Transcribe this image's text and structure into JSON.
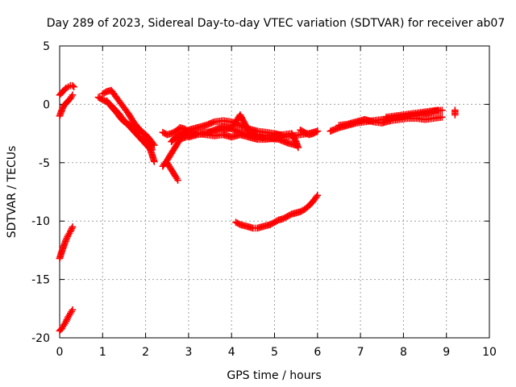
{
  "chart_data": {
    "type": "scatter",
    "title": "Day 289 of 2023, Sidereal Day-to-day VTEC variation (SDTVAR) for receiver ab07",
    "xlabel": "GPS time / hours",
    "ylabel": "SDTVAR / TECUs",
    "xlim": [
      0,
      10
    ],
    "ylim": [
      -20,
      5
    ],
    "xticks": [
      0,
      1,
      2,
      3,
      4,
      5,
      6,
      7,
      8,
      9,
      10
    ],
    "yticks": [
      -20,
      -15,
      -10,
      -5,
      0,
      5
    ],
    "grid": true,
    "marker": "plus",
    "color": "#ff0000",
    "series": [
      {
        "tracks": [
          [
            [
              0.0,
              -1.0
            ],
            [
              0.05,
              -0.5
            ],
            [
              0.1,
              -0.1
            ],
            [
              0.15,
              0.1
            ],
            [
              0.2,
              0.3
            ],
            [
              0.25,
              0.5
            ],
            [
              0.3,
              0.8
            ]
          ],
          [
            [
              0.0,
              0.8
            ],
            [
              0.05,
              1.0
            ],
            [
              0.1,
              1.2
            ],
            [
              0.15,
              1.4
            ],
            [
              0.2,
              1.5
            ],
            [
              0.25,
              1.6
            ],
            [
              0.3,
              1.6
            ],
            [
              0.33,
              1.5
            ]
          ],
          [
            [
              0.0,
              -13.2
            ],
            [
              0.05,
              -12.6
            ],
            [
              0.1,
              -12.1
            ],
            [
              0.15,
              -11.6
            ],
            [
              0.2,
              -11.2
            ],
            [
              0.25,
              -10.9
            ],
            [
              0.3,
              -10.5
            ]
          ],
          [
            [
              0.0,
              -19.4
            ],
            [
              0.05,
              -19.2
            ],
            [
              0.1,
              -18.9
            ],
            [
              0.15,
              -18.6
            ],
            [
              0.2,
              -18.2
            ],
            [
              0.25,
              -17.9
            ],
            [
              0.3,
              -17.6
            ]
          ]
        ]
      },
      {
        "tracks": [
          [
            [
              0.9,
              0.6
            ],
            [
              1.0,
              0.4
            ],
            [
              1.1,
              0.2
            ],
            [
              1.2,
              -0.1
            ],
            [
              1.3,
              -0.5
            ],
            [
              1.4,
              -0.9
            ],
            [
              1.5,
              -1.4
            ],
            [
              1.6,
              -1.8
            ],
            [
              1.7,
              -2.2
            ],
            [
              1.8,
              -2.6
            ],
            [
              1.9,
              -3.0
            ],
            [
              2.0,
              -3.4
            ],
            [
              2.1,
              -3.8
            ],
            [
              2.15,
              -4.3
            ],
            [
              2.2,
              -4.9
            ]
          ],
          [
            [
              1.0,
              0.9
            ],
            [
              1.1,
              1.1
            ],
            [
              1.2,
              1.2
            ],
            [
              1.3,
              0.7
            ],
            [
              1.4,
              0.2
            ],
            [
              1.5,
              -0.3
            ],
            [
              1.6,
              -0.8
            ],
            [
              1.7,
              -1.4
            ],
            [
              1.8,
              -1.9
            ],
            [
              1.9,
              -2.3
            ],
            [
              2.0,
              -2.8
            ],
            [
              2.1,
              -3.4
            ],
            [
              2.15,
              -3.9
            ]
          ],
          [
            [
              1.1,
              0.3
            ],
            [
              1.2,
              -0.2
            ],
            [
              1.3,
              -0.6
            ],
            [
              1.4,
              -1.1
            ],
            [
              1.5,
              -1.5
            ],
            [
              1.6,
              -1.7
            ],
            [
              1.7,
              -1.9
            ],
            [
              1.8,
              -2.1
            ],
            [
              1.9,
              -2.3
            ],
            [
              2.0,
              -2.6
            ],
            [
              2.1,
              -3.0
            ],
            [
              2.2,
              -3.5
            ]
          ]
        ]
      },
      {
        "tracks": [
          [
            [
              2.4,
              -2.4
            ],
            [
              2.5,
              -2.6
            ],
            [
              2.6,
              -2.5
            ],
            [
              2.7,
              -2.3
            ],
            [
              2.8,
              -2.0
            ],
            [
              2.9,
              -2.1
            ],
            [
              3.0,
              -2.3
            ],
            [
              3.2,
              -2.5
            ],
            [
              3.4,
              -2.6
            ],
            [
              3.6,
              -2.7
            ],
            [
              3.8,
              -2.6
            ],
            [
              4.0,
              -2.8
            ],
            [
              4.2,
              -2.6
            ],
            [
              4.4,
              -2.8
            ],
            [
              4.6,
              -3.0
            ],
            [
              4.8,
              -3.0
            ],
            [
              5.0,
              -2.9
            ],
            [
              5.2,
              -2.8
            ],
            [
              5.4,
              -2.7
            ],
            [
              5.6,
              -2.6
            ],
            [
              5.8,
              -2.5
            ],
            [
              6.0,
              -2.3
            ]
          ],
          [
            [
              2.5,
              -5.0
            ],
            [
              2.6,
              -5.6
            ],
            [
              2.7,
              -6.2
            ],
            [
              2.75,
              -6.5
            ]
          ],
          [
            [
              2.4,
              -5.3
            ],
            [
              2.5,
              -4.8
            ],
            [
              2.6,
              -4.2
            ],
            [
              2.7,
              -3.6
            ],
            [
              2.8,
              -3.0
            ],
            [
              2.9,
              -2.6
            ],
            [
              3.0,
              -2.4
            ]
          ],
          [
            [
              2.6,
              -3.2
            ],
            [
              2.7,
              -2.8
            ],
            [
              2.8,
              -2.5
            ],
            [
              3.0,
              -2.2
            ],
            [
              3.2,
              -2.0
            ],
            [
              3.4,
              -1.8
            ],
            [
              3.6,
              -1.5
            ],
            [
              3.8,
              -1.4
            ],
            [
              4.0,
              -1.5
            ],
            [
              4.2,
              -1.8
            ],
            [
              4.4,
              -2.1
            ],
            [
              4.6,
              -2.3
            ],
            [
              4.8,
              -2.4
            ],
            [
              5.0,
              -2.5
            ],
            [
              5.2,
              -2.7
            ]
          ],
          [
            [
              2.8,
              -3.0
            ],
            [
              3.0,
              -2.7
            ],
            [
              3.2,
              -2.5
            ],
            [
              3.4,
              -2.4
            ],
            [
              3.6,
              -2.3
            ],
            [
              3.8,
              -2.2
            ],
            [
              4.0,
              -2.0
            ],
            [
              4.1,
              -1.5
            ],
            [
              4.2,
              -0.9
            ],
            [
              4.3,
              -1.6
            ],
            [
              4.4,
              -2.3
            ],
            [
              4.6,
              -2.7
            ],
            [
              4.8,
              -2.7
            ],
            [
              5.0,
              -2.6
            ],
            [
              5.2,
              -2.6
            ],
            [
              5.4,
              -2.5
            ],
            [
              5.5,
              -3.2
            ],
            [
              5.55,
              -3.7
            ]
          ],
          [
            [
              3.0,
              -2.8
            ],
            [
              3.2,
              -2.6
            ],
            [
              3.4,
              -2.5
            ],
            [
              3.6,
              -2.2
            ],
            [
              3.8,
              -1.9
            ],
            [
              4.0,
              -2.1
            ],
            [
              4.2,
              -2.4
            ],
            [
              4.5,
              -2.7
            ],
            [
              4.8,
              -2.9
            ],
            [
              5.1,
              -3.0
            ],
            [
              5.3,
              -3.3
            ],
            [
              5.5,
              -3.5
            ]
          ],
          [
            [
              5.6,
              -2.2
            ],
            [
              5.7,
              -2.4
            ],
            [
              5.8,
              -2.6
            ],
            [
              5.9,
              -2.5
            ],
            [
              6.0,
              -2.3
            ]
          ]
        ]
      },
      {
        "tracks": [
          [
            [
              4.1,
              -10.1
            ],
            [
              4.2,
              -10.3
            ],
            [
              4.3,
              -10.4
            ],
            [
              4.4,
              -10.5
            ],
            [
              4.5,
              -10.6
            ],
            [
              4.6,
              -10.6
            ],
            [
              4.7,
              -10.5
            ],
            [
              4.8,
              -10.4
            ],
            [
              4.9,
              -10.3
            ],
            [
              5.0,
              -10.1
            ],
            [
              5.1,
              -9.9
            ],
            [
              5.2,
              -9.8
            ],
            [
              5.3,
              -9.6
            ],
            [
              5.4,
              -9.4
            ],
            [
              5.5,
              -9.3
            ],
            [
              5.6,
              -9.2
            ],
            [
              5.7,
              -9.0
            ],
            [
              5.8,
              -8.7
            ],
            [
              5.9,
              -8.3
            ],
            [
              6.0,
              -7.8
            ]
          ]
        ]
      },
      {
        "tracks": [
          [
            [
              6.3,
              -2.3
            ],
            [
              6.5,
              -2.0
            ],
            [
              6.7,
              -1.8
            ],
            [
              6.9,
              -1.6
            ],
            [
              7.1,
              -1.5
            ],
            [
              7.3,
              -1.4
            ],
            [
              7.5,
              -1.3
            ],
            [
              7.7,
              -1.2
            ],
            [
              7.9,
              -1.1
            ],
            [
              8.1,
              -1.0
            ],
            [
              8.3,
              -0.9
            ],
            [
              8.5,
              -0.8
            ],
            [
              8.7,
              -0.6
            ],
            [
              8.9,
              -0.5
            ]
          ],
          [
            [
              6.5,
              -1.8
            ],
            [
              6.7,
              -1.7
            ],
            [
              6.9,
              -1.5
            ],
            [
              7.1,
              -1.3
            ],
            [
              7.3,
              -1.5
            ],
            [
              7.5,
              -1.6
            ],
            [
              7.7,
              -1.4
            ],
            [
              7.9,
              -1.3
            ],
            [
              8.1,
              -1.2
            ],
            [
              8.3,
              -1.2
            ],
            [
              8.5,
              -1.3
            ],
            [
              8.7,
              -1.2
            ],
            [
              8.9,
              -1.1
            ]
          ],
          [
            [
              7.6,
              -1.1
            ],
            [
              7.8,
              -1.0
            ],
            [
              8.0,
              -0.9
            ],
            [
              8.2,
              -0.8
            ],
            [
              8.4,
              -0.7
            ],
            [
              8.6,
              -0.6
            ],
            [
              8.8,
              -0.5
            ]
          ],
          [
            [
              9.2,
              -0.5
            ],
            [
              9.2,
              -0.9
            ]
          ]
        ]
      }
    ]
  }
}
